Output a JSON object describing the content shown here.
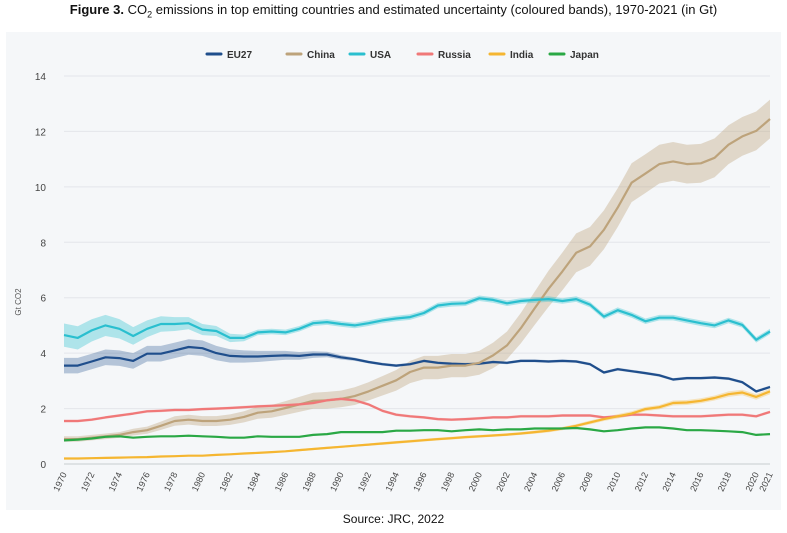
{
  "title": {
    "bold": "Figure 3.",
    "pre": " CO",
    "sub": "2",
    "post": " emissions in top emitting countries and estimated uncertainty (coloured bands), 1970-2021 (in Gt)"
  },
  "source": "Source: JRC, 2022",
  "chart_data": {
    "type": "line",
    "title": "CO2 emissions in top emitting countries and estimated uncertainty (coloured bands), 1970-2021 (in Gt)",
    "xlabel": "",
    "ylabel": "Gt CO2",
    "ylim": [
      0,
      14
    ],
    "yticks": [
      0,
      2,
      4,
      6,
      8,
      10,
      12,
      14
    ],
    "xlim": [
      1970,
      2021
    ],
    "xticks": [
      "1970",
      "1972",
      "1974",
      "1976",
      "1978",
      "1980",
      "1982",
      "1984",
      "1986",
      "1988",
      "1990",
      "1992",
      "1994",
      "1996",
      "1998",
      "2000",
      "2002",
      "2004",
      "2006",
      "2008",
      "2010",
      "2012",
      "2014",
      "2016",
      "2018",
      "2020",
      "2021"
    ],
    "grid": true,
    "legend_position": "top-center",
    "x": [
      1970,
      1971,
      1972,
      1973,
      1974,
      1975,
      1976,
      1977,
      1978,
      1979,
      1980,
      1981,
      1982,
      1983,
      1984,
      1985,
      1986,
      1987,
      1988,
      1989,
      1990,
      1991,
      1992,
      1993,
      1994,
      1995,
      1996,
      1997,
      1998,
      1999,
      2000,
      2001,
      2002,
      2003,
      2004,
      2005,
      2006,
      2007,
      2008,
      2009,
      2010,
      2011,
      2012,
      2013,
      2014,
      2015,
      2016,
      2017,
      2018,
      2019,
      2020,
      2021
    ],
    "series": [
      {
        "name": "EU27",
        "color": "#1f4e8c",
        "band_color": "#1f4e8c",
        "band_opacity": 0.3,
        "values": [
          3.55,
          3.55,
          3.7,
          3.85,
          3.82,
          3.72,
          3.98,
          3.98,
          4.1,
          4.22,
          4.18,
          4.0,
          3.9,
          3.88,
          3.88,
          3.9,
          3.92,
          3.9,
          3.95,
          3.95,
          3.85,
          3.78,
          3.68,
          3.6,
          3.55,
          3.6,
          3.72,
          3.65,
          3.62,
          3.6,
          3.62,
          3.68,
          3.65,
          3.72,
          3.72,
          3.7,
          3.72,
          3.7,
          3.6,
          3.3,
          3.42,
          3.35,
          3.28,
          3.2,
          3.05,
          3.1,
          3.1,
          3.12,
          3.08,
          2.95,
          2.62,
          2.78
        ],
        "band": [
          0.28,
          0.28,
          0.28,
          0.28,
          0.28,
          0.28,
          0.28,
          0.28,
          0.28,
          0.28,
          0.28,
          0.26,
          0.24,
          0.22,
          0.2,
          0.18,
          0.16,
          0.14,
          0.12,
          0.1,
          0.08,
          0.06,
          0.05,
          0.05,
          0.05,
          0.05,
          0.05,
          0.05,
          0.05,
          0.05,
          0.05,
          0.05,
          0.05,
          0.05,
          0.05,
          0.05,
          0.05,
          0.05,
          0.05,
          0.05,
          0.05,
          0.05,
          0.05,
          0.05,
          0.05,
          0.05,
          0.05,
          0.05,
          0.05,
          0.05,
          0.05,
          0.05
        ]
      },
      {
        "name": "China",
        "color": "#bda37b",
        "band_color": "#bda37b",
        "band_opacity": 0.38,
        "values": [
          0.9,
          0.9,
          0.95,
          1.0,
          1.05,
          1.15,
          1.22,
          1.38,
          1.55,
          1.6,
          1.55,
          1.55,
          1.6,
          1.7,
          1.85,
          1.9,
          2.02,
          2.15,
          2.28,
          2.3,
          2.35,
          2.45,
          2.62,
          2.82,
          3.02,
          3.32,
          3.48,
          3.48,
          3.55,
          3.55,
          3.65,
          3.92,
          4.28,
          4.9,
          5.62,
          6.32,
          6.95,
          7.62,
          7.85,
          8.45,
          9.25,
          10.15,
          10.48,
          10.82,
          10.92,
          10.82,
          10.85,
          11.05,
          11.52,
          11.82,
          12.02,
          12.45
        ],
        "band": [
          0.1,
          0.1,
          0.1,
          0.1,
          0.1,
          0.12,
          0.13,
          0.15,
          0.17,
          0.18,
          0.18,
          0.18,
          0.19,
          0.2,
          0.22,
          0.23,
          0.25,
          0.27,
          0.29,
          0.3,
          0.3,
          0.32,
          0.33,
          0.35,
          0.37,
          0.4,
          0.42,
          0.42,
          0.42,
          0.42,
          0.43,
          0.46,
          0.5,
          0.55,
          0.6,
          0.65,
          0.68,
          0.7,
          0.7,
          0.7,
          0.7,
          0.7,
          0.7,
          0.7,
          0.7,
          0.7,
          0.7,
          0.7,
          0.7,
          0.7,
          0.7,
          0.7
        ]
      },
      {
        "name": "USA",
        "color": "#2abfcf",
        "band_color": "#2abfcf",
        "band_opacity": 0.35,
        "values": [
          4.65,
          4.55,
          4.82,
          5.0,
          4.88,
          4.62,
          4.88,
          5.05,
          5.05,
          5.08,
          4.85,
          4.8,
          4.55,
          4.55,
          4.75,
          4.78,
          4.75,
          4.88,
          5.08,
          5.12,
          5.05,
          5.0,
          5.08,
          5.18,
          5.25,
          5.3,
          5.45,
          5.72,
          5.78,
          5.8,
          5.98,
          5.92,
          5.8,
          5.88,
          5.92,
          5.95,
          5.88,
          5.95,
          5.75,
          5.32,
          5.55,
          5.38,
          5.15,
          5.28,
          5.28,
          5.18,
          5.08,
          5.0,
          5.18,
          5.02,
          4.48,
          4.78
        ],
        "band": [
          0.42,
          0.42,
          0.4,
          0.38,
          0.35,
          0.32,
          0.3,
          0.28,
          0.25,
          0.22,
          0.2,
          0.18,
          0.15,
          0.12,
          0.1,
          0.1,
          0.1,
          0.1,
          0.1,
          0.1,
          0.1,
          0.1,
          0.1,
          0.1,
          0.1,
          0.1,
          0.1,
          0.1,
          0.1,
          0.1,
          0.1,
          0.1,
          0.1,
          0.1,
          0.1,
          0.1,
          0.1,
          0.1,
          0.1,
          0.1,
          0.1,
          0.1,
          0.1,
          0.1,
          0.1,
          0.1,
          0.1,
          0.1,
          0.1,
          0.1,
          0.1,
          0.1
        ]
      },
      {
        "name": "Russia",
        "color": "#f07878",
        "band_color": "#f07878",
        "band_opacity": 0.3,
        "values": [
          1.55,
          1.55,
          1.6,
          1.68,
          1.75,
          1.82,
          1.9,
          1.92,
          1.95,
          1.95,
          1.98,
          2.0,
          2.02,
          2.05,
          2.08,
          2.1,
          2.12,
          2.15,
          2.2,
          2.3,
          2.35,
          2.3,
          2.15,
          1.92,
          1.78,
          1.72,
          1.68,
          1.62,
          1.6,
          1.62,
          1.65,
          1.68,
          1.68,
          1.72,
          1.72,
          1.72,
          1.75,
          1.75,
          1.75,
          1.68,
          1.72,
          1.78,
          1.78,
          1.75,
          1.72,
          1.72,
          1.72,
          1.75,
          1.78,
          1.78,
          1.72,
          1.88
        ],
        "band": [
          0.05,
          0.05,
          0.05,
          0.05,
          0.05,
          0.05,
          0.05,
          0.05,
          0.05,
          0.05,
          0.05,
          0.05,
          0.05,
          0.05,
          0.05,
          0.05,
          0.05,
          0.05,
          0.05,
          0.05,
          0.05,
          0.05,
          0.05,
          0.05,
          0.05,
          0.05,
          0.05,
          0.05,
          0.05,
          0.05,
          0.05,
          0.05,
          0.05,
          0.05,
          0.05,
          0.05,
          0.05,
          0.05,
          0.05,
          0.05,
          0.05,
          0.05,
          0.05,
          0.05,
          0.05,
          0.05,
          0.05,
          0.05,
          0.05,
          0.05,
          0.05,
          0.05
        ]
      },
      {
        "name": "India",
        "color": "#f5b631",
        "band_color": "#f5b631",
        "band_opacity": 0.3,
        "values": [
          0.2,
          0.2,
          0.21,
          0.22,
          0.23,
          0.24,
          0.25,
          0.27,
          0.28,
          0.3,
          0.3,
          0.33,
          0.35,
          0.38,
          0.4,
          0.43,
          0.46,
          0.5,
          0.54,
          0.58,
          0.62,
          0.66,
          0.7,
          0.74,
          0.78,
          0.82,
          0.86,
          0.9,
          0.93,
          0.97,
          1.0,
          1.03,
          1.06,
          1.1,
          1.15,
          1.2,
          1.28,
          1.38,
          1.5,
          1.62,
          1.72,
          1.82,
          1.98,
          2.05,
          2.2,
          2.22,
          2.28,
          2.38,
          2.52,
          2.58,
          2.42,
          2.62
        ],
        "band": [
          0.03,
          0.03,
          0.03,
          0.03,
          0.03,
          0.03,
          0.03,
          0.03,
          0.03,
          0.03,
          0.03,
          0.03,
          0.03,
          0.03,
          0.03,
          0.03,
          0.03,
          0.04,
          0.04,
          0.04,
          0.04,
          0.04,
          0.04,
          0.05,
          0.05,
          0.05,
          0.05,
          0.05,
          0.05,
          0.05,
          0.05,
          0.05,
          0.05,
          0.05,
          0.06,
          0.06,
          0.06,
          0.06,
          0.07,
          0.07,
          0.08,
          0.08,
          0.08,
          0.08,
          0.09,
          0.09,
          0.09,
          0.09,
          0.1,
          0.1,
          0.1,
          0.1
        ]
      },
      {
        "name": "Japan",
        "color": "#2aa845",
        "band_color": "#2aa845",
        "band_opacity": 0.3,
        "values": [
          0.85,
          0.88,
          0.92,
          0.98,
          1.0,
          0.95,
          0.98,
          1.0,
          1.0,
          1.02,
          1.0,
          0.98,
          0.95,
          0.95,
          1.0,
          0.98,
          0.98,
          0.98,
          1.05,
          1.08,
          1.15,
          1.15,
          1.15,
          1.15,
          1.2,
          1.2,
          1.22,
          1.22,
          1.18,
          1.22,
          1.25,
          1.22,
          1.25,
          1.25,
          1.28,
          1.28,
          1.28,
          1.3,
          1.25,
          1.18,
          1.22,
          1.28,
          1.32,
          1.32,
          1.28,
          1.22,
          1.22,
          1.2,
          1.18,
          1.15,
          1.05,
          1.08
        ],
        "band": [
          0.03,
          0.03,
          0.03,
          0.03,
          0.03,
          0.03,
          0.03,
          0.03,
          0.03,
          0.03,
          0.03,
          0.03,
          0.03,
          0.03,
          0.03,
          0.03,
          0.03,
          0.03,
          0.03,
          0.03,
          0.03,
          0.03,
          0.03,
          0.03,
          0.03,
          0.03,
          0.03,
          0.03,
          0.03,
          0.03,
          0.03,
          0.03,
          0.03,
          0.03,
          0.03,
          0.03,
          0.03,
          0.03,
          0.03,
          0.03,
          0.03,
          0.03,
          0.03,
          0.03,
          0.03,
          0.03,
          0.03,
          0.03,
          0.03,
          0.03,
          0.03,
          0.03
        ]
      }
    ]
  }
}
